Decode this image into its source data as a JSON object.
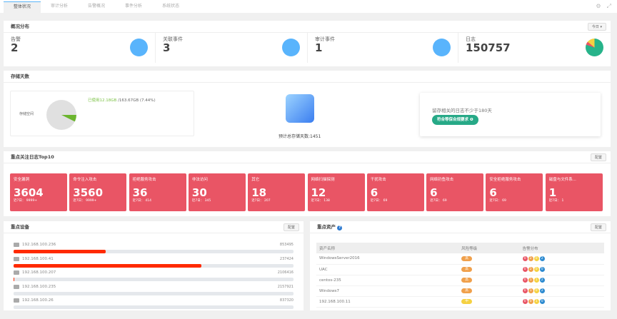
{
  "tabs": [
    "整体状况",
    "审计分析",
    "告警概况",
    "事件分析",
    "系统状态"
  ],
  "overview": {
    "title": "概况分布",
    "range": "今日 ▾",
    "stats": [
      {
        "label": "告警",
        "value": "2"
      },
      {
        "label": "关联事件",
        "value": "3"
      },
      {
        "label": "审计事件",
        "value": "1"
      },
      {
        "label": "日志",
        "value": "150757"
      }
    ]
  },
  "storage": {
    "title": "存储天数",
    "space_label": "存储空间",
    "used": "已使用12.18GB",
    "total": " /163.67GB (7.44%)",
    "used_percent": 7.44,
    "forecast": "预计总存储天数:1451",
    "requirement": "留存相关的日志不少于180天",
    "badge": "符合等保合规要求 ❶"
  },
  "top10": {
    "title": "重点关注日志Top10",
    "config": "配置",
    "items": [
      {
        "name": "安全漏洞",
        "count": "3604",
        "recent": "近7日： 9999+"
      },
      {
        "name": "命令注入攻击",
        "count": "3560",
        "recent": "近7日： 9999+"
      },
      {
        "name": "拒绝服务攻击",
        "count": "36",
        "recent": "近7日： 414"
      },
      {
        "name": "非法访问",
        "count": "30",
        "recent": "近7日： 345"
      },
      {
        "name": "其它",
        "count": "18",
        "recent": "近7日： 207"
      },
      {
        "name": "网络扫描探测",
        "count": "12",
        "recent": "近7日： 138"
      },
      {
        "name": "干扰攻击",
        "count": "6",
        "recent": "近7日： 69"
      },
      {
        "name": "网络钓鱼攻击",
        "count": "6",
        "recent": "近7日： 69"
      },
      {
        "name": "安全拒绝服务攻击",
        "count": "6",
        "recent": "近7日： 69"
      },
      {
        "name": "磁盘与文件系...",
        "count": "1",
        "recent": "近7日： 1"
      }
    ]
  },
  "devices": {
    "title": "重点设备",
    "config": "配置",
    "items": [
      {
        "ip": "192.168.100.236",
        "count": "853495",
        "percent": 33
      },
      {
        "ip": "192.168.100.41",
        "count": "237424",
        "percent": 67
      },
      {
        "ip": "192.168.100.207",
        "count": "2106416",
        "percent": 0.3
      },
      {
        "ip": "192.168.100.235",
        "count": "2157921",
        "percent": 0
      },
      {
        "ip": "192.168.100.26",
        "count": "837320",
        "percent": 0
      }
    ]
  },
  "assets": {
    "title": "重点资产",
    "config": "配置",
    "headers": [
      "资产名称",
      "风险等级",
      "告警分布"
    ],
    "rows": [
      {
        "name": "WindowsServer2016",
        "risk": "高",
        "dist": [
          "0",
          "2",
          "0",
          "2"
        ]
      },
      {
        "name": "UAC",
        "risk": "高",
        "dist": [
          "0",
          "2",
          "0",
          "0"
        ]
      },
      {
        "name": "centos-235",
        "risk": "高",
        "dist": [
          "0",
          "1",
          "1",
          "2"
        ]
      },
      {
        "name": "Windows7",
        "risk": "高",
        "dist": [
          "0",
          "1",
          "0",
          "2"
        ]
      },
      {
        "name": "192.168.100.11",
        "risk": "中",
        "dist": [
          "0",
          "0",
          "1",
          "0"
        ]
      }
    ]
  },
  "colors": {
    "high": "#f0a04b",
    "mid": "#f5d142",
    "dist": [
      "#e95565",
      "#f0a04b",
      "#f5d142",
      "#2e8bd0"
    ]
  }
}
